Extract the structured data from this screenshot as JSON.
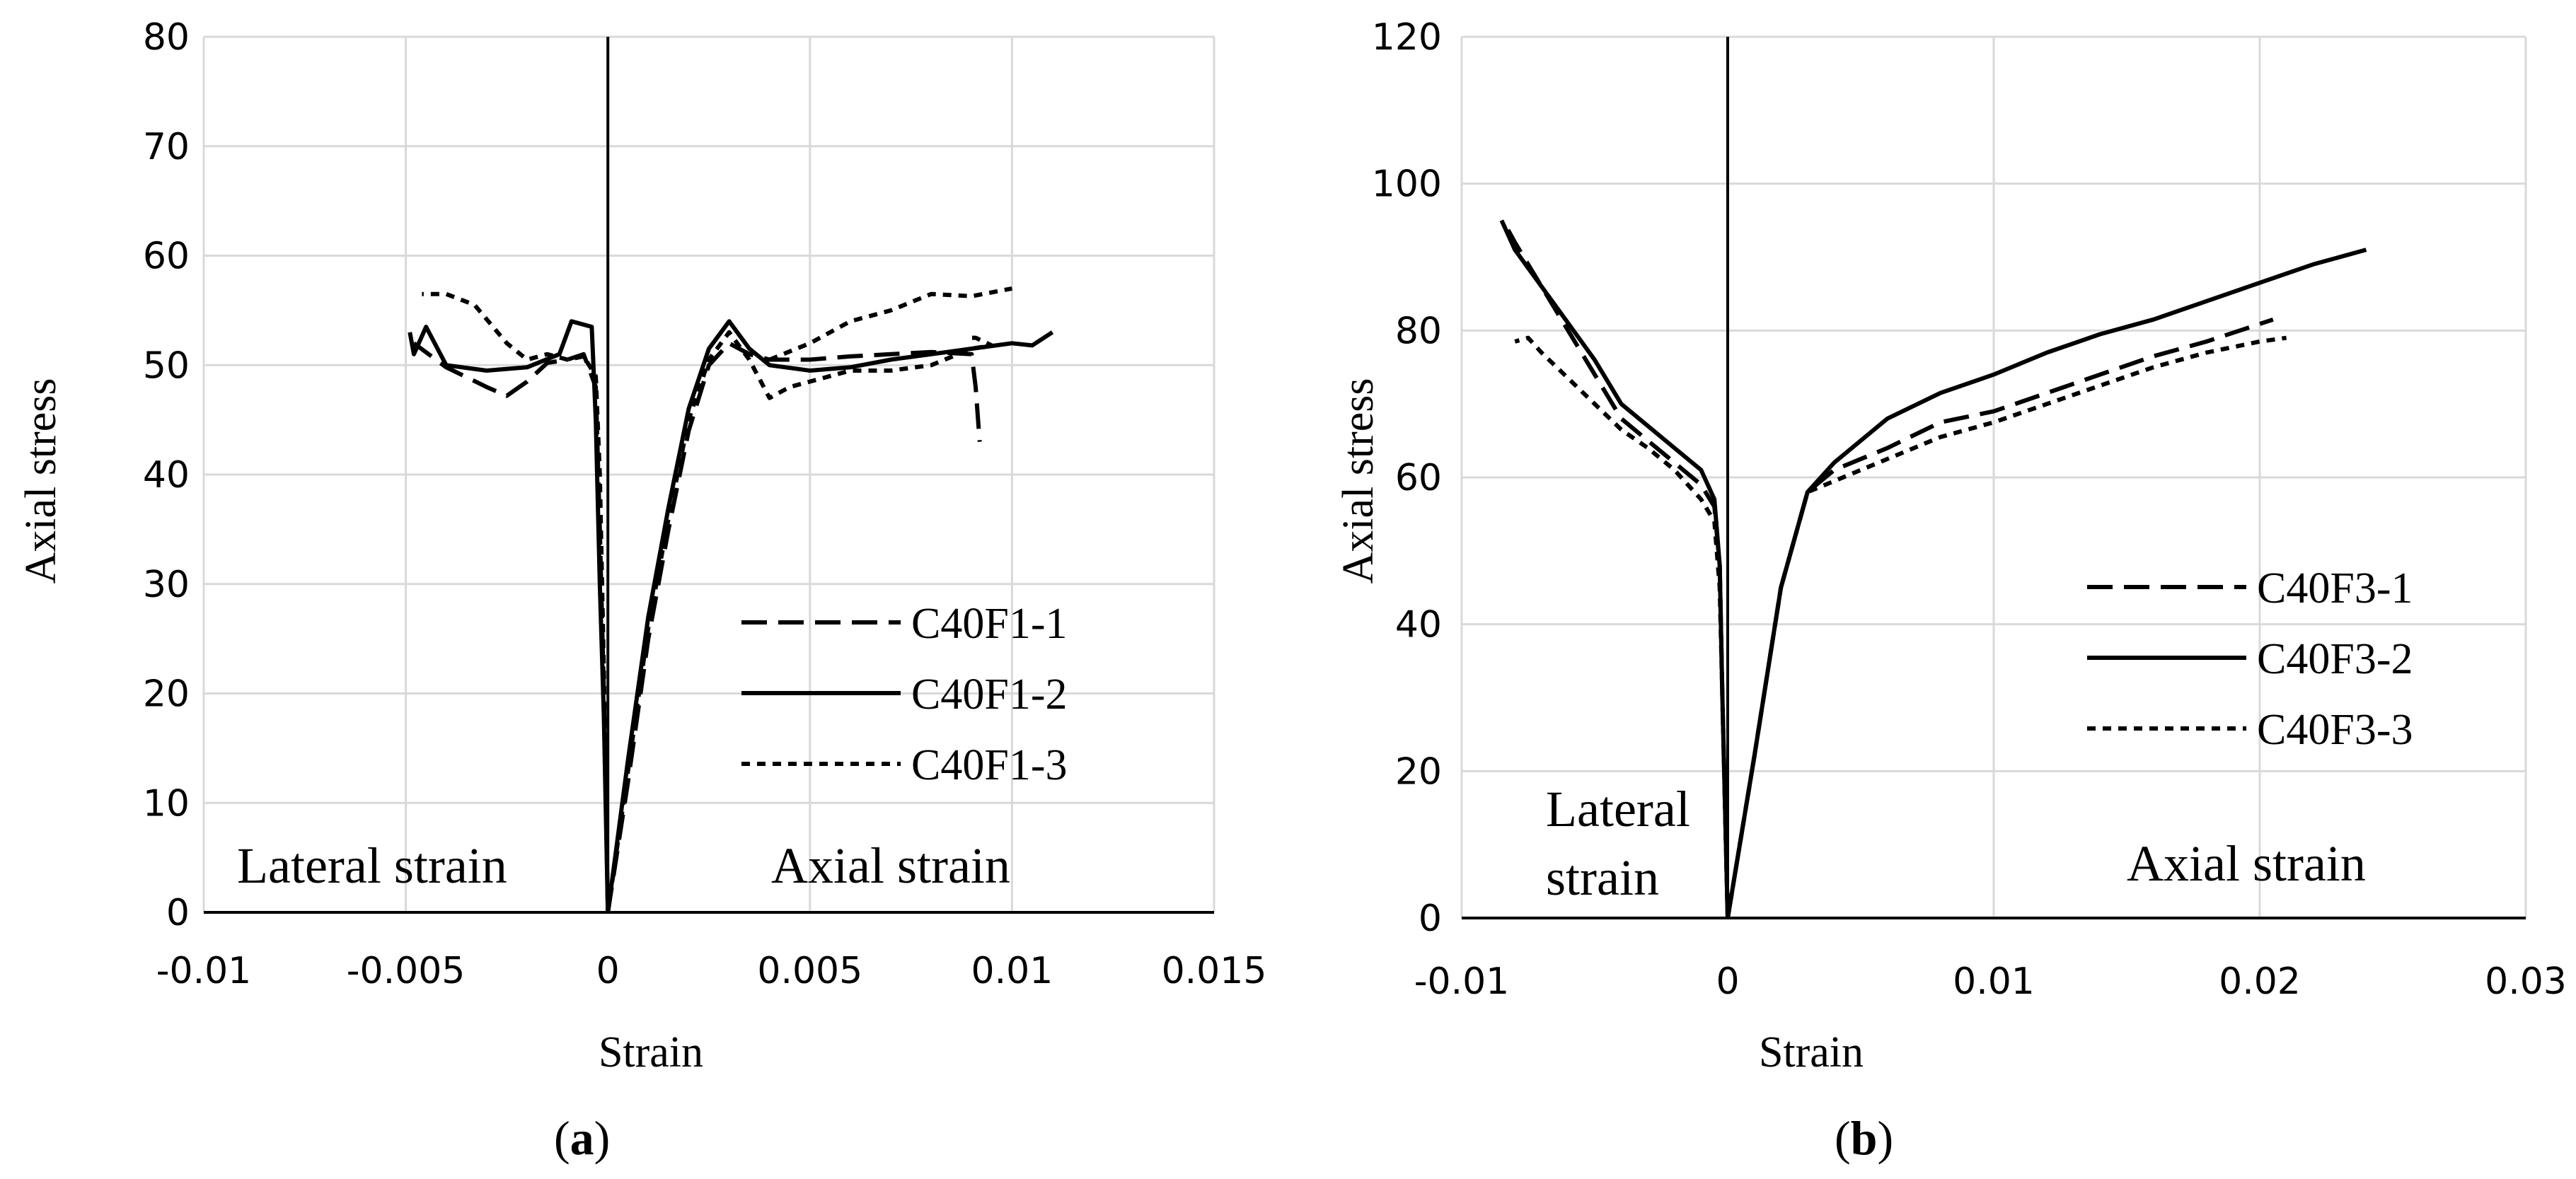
{
  "chart_data": [
    {
      "type": "line",
      "caption_open": "(",
      "caption_label": "a",
      "caption_close": ")",
      "xlabel": "Strain",
      "ylabel": "Axial stress",
      "xlim": [
        -0.01,
        0.015
      ],
      "ylim": [
        0,
        80
      ],
      "xticks": [
        -0.01,
        -0.005,
        0,
        0.005,
        0.01,
        0.015
      ],
      "xtick_labels": [
        "-0.01",
        "-0.005",
        "0",
        "0.005",
        "0.01",
        "0.015"
      ],
      "yticks": [
        0,
        10,
        20,
        30,
        40,
        50,
        60,
        70,
        80
      ],
      "ytick_labels": [
        "0",
        "10",
        "20",
        "30",
        "40",
        "50",
        "60",
        "70",
        "80"
      ],
      "grid": true,
      "legend_position": "center-right",
      "annotations": [
        {
          "text": "Lateral strain",
          "position": "bottom-left"
        },
        {
          "text": "Axial strain",
          "position": "bottom-right"
        }
      ],
      "series": [
        {
          "name": "C40F1-1",
          "dash": "long-dash",
          "lateral": [
            [
              0,
              0
            ],
            [
              -0.0001,
              20
            ],
            [
              -0.0002,
              35
            ],
            [
              -0.0003,
              48
            ],
            [
              -0.0006,
              51
            ],
            [
              -0.001,
              50.5
            ],
            [
              -0.0015,
              50.2
            ],
            [
              -0.002,
              48.5
            ],
            [
              -0.0025,
              47.2
            ],
            [
              -0.003,
              48
            ],
            [
              -0.004,
              49.8
            ],
            [
              -0.0048,
              52
            ]
          ],
          "axial": [
            [
              0,
              0
            ],
            [
              0.0005,
              12
            ],
            [
              0.001,
              25
            ],
            [
              0.0015,
              35
            ],
            [
              0.002,
              44
            ],
            [
              0.0025,
              50
            ],
            [
              0.003,
              52
            ],
            [
              0.0035,
              51
            ],
            [
              0.004,
              50.5
            ],
            [
              0.005,
              50.5
            ],
            [
              0.006,
              50.8
            ],
            [
              0.007,
              51
            ],
            [
              0.008,
              51.2
            ],
            [
              0.009,
              51
            ],
            [
              0.0091,
              48
            ],
            [
              0.0092,
              43
            ]
          ]
        },
        {
          "name": "C40F1-2",
          "dash": "solid",
          "lateral": [
            [
              0,
              0
            ],
            [
              -0.0001,
              18
            ],
            [
              -0.0002,
              30
            ],
            [
              -0.0003,
              45
            ],
            [
              -0.0004,
              53.5
            ],
            [
              -0.0007,
              53.8
            ],
            [
              -0.0009,
              54
            ],
            [
              -0.0012,
              51
            ],
            [
              -0.002,
              49.8
            ],
            [
              -0.003,
              49.5
            ],
            [
              -0.004,
              50
            ],
            [
              -0.0045,
              53.5
            ],
            [
              -0.0048,
              51
            ],
            [
              -0.0049,
              53
            ]
          ],
          "axial": [
            [
              0,
              0
            ],
            [
              0.0005,
              14
            ],
            [
              0.001,
              27
            ],
            [
              0.0015,
              37
            ],
            [
              0.002,
              46
            ],
            [
              0.0025,
              51.5
            ],
            [
              0.003,
              54
            ],
            [
              0.0035,
              51.5
            ],
            [
              0.004,
              50
            ],
            [
              0.005,
              49.5
            ],
            [
              0.006,
              49.8
            ],
            [
              0.007,
              50.5
            ],
            [
              0.008,
              51
            ],
            [
              0.009,
              51.5
            ],
            [
              0.01,
              52
            ],
            [
              0.0105,
              51.8
            ],
            [
              0.011,
              53
            ]
          ]
        },
        {
          "name": "C40F1-3",
          "dash": "short-dash",
          "lateral": [
            [
              0,
              0
            ],
            [
              -0.0001,
              22
            ],
            [
              -0.0002,
              40
            ],
            [
              -0.0003,
              49
            ],
            [
              -0.0006,
              50.8
            ],
            [
              -0.001,
              50.5
            ],
            [
              -0.0015,
              51
            ],
            [
              -0.002,
              50.5
            ],
            [
              -0.0025,
              52
            ],
            [
              -0.0033,
              55.5
            ],
            [
              -0.004,
              56.5
            ],
            [
              -0.0046,
              56.5
            ]
          ],
          "axial": [
            [
              0,
              0
            ],
            [
              0.0005,
              13
            ],
            [
              0.001,
              26
            ],
            [
              0.0015,
              36
            ],
            [
              0.002,
              45
            ],
            [
              0.0025,
              50.5
            ],
            [
              0.003,
              53
            ],
            [
              0.0035,
              50.5
            ],
            [
              0.004,
              47
            ],
            [
              0.0045,
              48
            ],
            [
              0.005,
              48.5
            ],
            [
              0.006,
              49.5
            ],
            [
              0.007,
              49.5
            ],
            [
              0.008,
              50
            ],
            [
              0.009,
              51.5
            ],
            [
              0.0095,
              51.8
            ],
            [
              0.0091,
              52.5
            ],
            [
              0.009,
              52.5
            ]
          ],
          "axial_upper": [
            [
              0.004,
              50.5
            ],
            [
              0.005,
              52
            ],
            [
              0.006,
              54
            ],
            [
              0.007,
              55
            ],
            [
              0.008,
              56.5
            ],
            [
              0.009,
              56.3
            ],
            [
              0.01,
              57
            ]
          ]
        }
      ]
    },
    {
      "type": "line",
      "caption_open": "(",
      "caption_label": "b",
      "caption_close": ")",
      "xlabel": "Strain",
      "ylabel": "Axial stress",
      "xlim": [
        -0.01,
        0.03
      ],
      "ylim": [
        0,
        120
      ],
      "xticks": [
        -0.01,
        0,
        0.01,
        0.02,
        0.03
      ],
      "xtick_labels": [
        "-0.01",
        "0",
        "0.01",
        "0.02",
        "0.03"
      ],
      "yticks": [
        0,
        20,
        40,
        60,
        80,
        100,
        120
      ],
      "ytick_labels": [
        "0",
        "20",
        "40",
        "60",
        "80",
        "100",
        "120"
      ],
      "grid": true,
      "legend_position": "center-right",
      "annotations": [
        {
          "text": "Lateral",
          "position": "bottom-left"
        },
        {
          "text": "strain",
          "position": "bottom-left"
        },
        {
          "text": "Axial strain",
          "position": "bottom-right"
        }
      ],
      "series": [
        {
          "name": "C40F3-1",
          "dash": "long-dash",
          "lateral": [
            [
              0,
              0
            ],
            [
              -0.0002,
              30
            ],
            [
              -0.0003,
              48
            ],
            [
              -0.0005,
              56
            ],
            [
              -0.001,
              59
            ],
            [
              -0.002,
              62
            ],
            [
              -0.003,
              65
            ],
            [
              -0.004,
              68
            ],
            [
              -0.005,
              74
            ],
            [
              -0.006,
              80
            ],
            [
              -0.007,
              86
            ],
            [
              -0.008,
              92
            ],
            [
              -0.0083,
              94
            ]
          ],
          "axial": [
            [
              0,
              0
            ],
            [
              0.001,
              22
            ],
            [
              0.002,
              45
            ],
            [
              0.003,
              58
            ],
            [
              0.004,
              61
            ],
            [
              0.006,
              64
            ],
            [
              0.008,
              67.5
            ],
            [
              0.01,
              69
            ],
            [
              0.012,
              71.5
            ],
            [
              0.014,
              74
            ],
            [
              0.016,
              76.5
            ],
            [
              0.018,
              78.5
            ],
            [
              0.0205,
              81.5
            ]
          ]
        },
        {
          "name": "C40F3-2",
          "dash": "solid",
          "lateral": [
            [
              0,
              0
            ],
            [
              -0.0002,
              30
            ],
            [
              -0.0003,
              48
            ],
            [
              -0.0005,
              57
            ],
            [
              -0.001,
              61
            ],
            [
              -0.002,
              64
            ],
            [
              -0.003,
              67
            ],
            [
              -0.004,
              70
            ],
            [
              -0.005,
              76
            ],
            [
              -0.006,
              81
            ],
            [
              -0.007,
              86
            ],
            [
              -0.008,
              91
            ],
            [
              -0.0085,
              95
            ]
          ],
          "axial": [
            [
              0,
              0
            ],
            [
              0.001,
              22
            ],
            [
              0.002,
              45
            ],
            [
              0.003,
              58
            ],
            [
              0.004,
              62
            ],
            [
              0.006,
              68
            ],
            [
              0.008,
              71.5
            ],
            [
              0.01,
              74
            ],
            [
              0.012,
              77
            ],
            [
              0.014,
              79.5
            ],
            [
              0.016,
              81.5
            ],
            [
              0.018,
              84
            ],
            [
              0.02,
              86.5
            ],
            [
              0.022,
              89
            ],
            [
              0.024,
              91
            ]
          ]
        },
        {
          "name": "C40F3-3",
          "dash": "short-dash",
          "lateral": [
            [
              0,
              0
            ],
            [
              -0.0002,
              30
            ],
            [
              -0.0003,
              45
            ],
            [
              -0.0005,
              54
            ],
            [
              -0.001,
              57
            ],
            [
              -0.002,
              61
            ],
            [
              -0.003,
              64
            ],
            [
              -0.004,
              66.5
            ],
            [
              -0.005,
              70
            ],
            [
              -0.006,
              73.5
            ],
            [
              -0.007,
              77
            ],
            [
              -0.0075,
              79
            ],
            [
              -0.008,
              78.5
            ]
          ],
          "axial": [
            [
              0,
              0
            ],
            [
              0.001,
              22
            ],
            [
              0.002,
              45
            ],
            [
              0.003,
              58
            ],
            [
              0.004,
              59.5
            ],
            [
              0.006,
              62.5
            ],
            [
              0.008,
              65.5
            ],
            [
              0.01,
              67.5
            ],
            [
              0.012,
              70
            ],
            [
              0.014,
              72.5
            ],
            [
              0.016,
              75
            ],
            [
              0.018,
              77
            ],
            [
              0.02,
              78.5
            ],
            [
              0.021,
              79
            ]
          ]
        }
      ]
    }
  ]
}
